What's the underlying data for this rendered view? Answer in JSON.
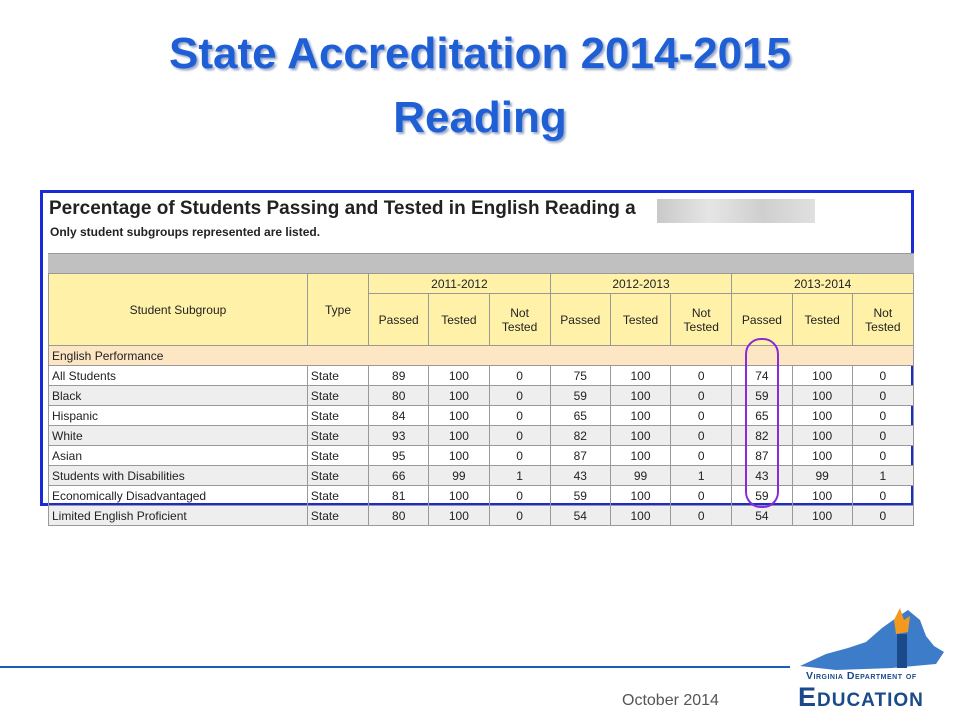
{
  "title_line1": "State Accreditation 2014-2015",
  "title_line2": "Reading",
  "report": {
    "heading": "Percentage of Students Passing and Tested in English Reading a",
    "note": "Only student subgroups represented are listed.",
    "col_subgroup": "Student Subgroup",
    "col_type": "Type",
    "years": [
      "2011-2012",
      "2012-2013",
      "2013-2014"
    ],
    "sub_passed": "Passed",
    "sub_tested": "Tested",
    "sub_not_tested": "Not Tested",
    "section": "English Performance",
    "rows": [
      {
        "name": "All Students",
        "type": "State",
        "v": [
          "89",
          "100",
          "0",
          "75",
          "100",
          "0",
          "74",
          "100",
          "0"
        ]
      },
      {
        "name": "Black",
        "type": "State",
        "v": [
          "80",
          "100",
          "0",
          "59",
          "100",
          "0",
          "59",
          "100",
          "0"
        ]
      },
      {
        "name": "Hispanic",
        "type": "State",
        "v": [
          "84",
          "100",
          "0",
          "65",
          "100",
          "0",
          "65",
          "100",
          "0"
        ]
      },
      {
        "name": "White",
        "type": "State",
        "v": [
          "93",
          "100",
          "0",
          "82",
          "100",
          "0",
          "82",
          "100",
          "0"
        ]
      },
      {
        "name": "Asian",
        "type": "State",
        "v": [
          "95",
          "100",
          "0",
          "87",
          "100",
          "0",
          "87",
          "100",
          "0"
        ]
      },
      {
        "name": "Students with Disabilities",
        "type": "State",
        "v": [
          "66",
          "99",
          "1",
          "43",
          "99",
          "1",
          "43",
          "99",
          "1"
        ]
      },
      {
        "name": "Economically Disadvantaged",
        "type": "State",
        "v": [
          "81",
          "100",
          "0",
          "59",
          "100",
          "0",
          "59",
          "100",
          "0"
        ]
      },
      {
        "name": "Limited English Proficient",
        "type": "State",
        "v": [
          "80",
          "100",
          "0",
          "54",
          "100",
          "0",
          "54",
          "100",
          "0"
        ]
      }
    ]
  },
  "footer_date": "October 2014",
  "logo": {
    "line1": "Virginia Department of",
    "line2": "Education"
  },
  "colors": {
    "title": "#1f5fd6",
    "header": "#fff2a8",
    "section": "#fde6c4",
    "highlight": "#8a2bd8",
    "border": "#1a2bd6"
  }
}
